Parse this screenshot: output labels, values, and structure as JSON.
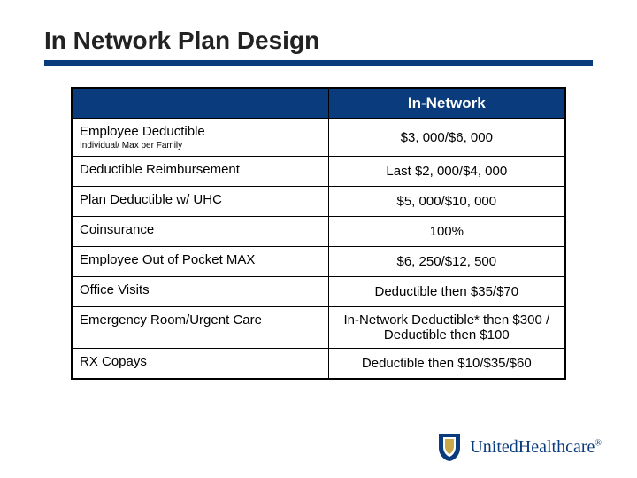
{
  "title": "In Network Plan Design",
  "colors": {
    "brand_navy": "#0a3b7c",
    "text": "#222222",
    "border": "#000000",
    "bg": "#ffffff"
  },
  "table": {
    "header_label": "In-Network",
    "rows": [
      {
        "label": "Employee Deductible",
        "sublabel": "Individual/ Max per Family",
        "value": "$3, 000/$6, 000"
      },
      {
        "label": "Deductible Reimbursement",
        "value": "Last $2, 000/$4, 000"
      },
      {
        "label": "Plan Deductible w/ UHC",
        "value": "$5, 000/$10, 000"
      },
      {
        "label": "Coinsurance",
        "value": "100%"
      },
      {
        "label": "Employee Out of Pocket MAX",
        "value": "$6, 250/$12, 500"
      },
      {
        "label": "Office Visits",
        "value": "Deductible then $35/$70"
      },
      {
        "label": "Emergency Room/Urgent Care",
        "value": "In-Network Deductible* then $300 / Deductible then $100",
        "tall": true
      },
      {
        "label": "RX Copays",
        "value": "Deductible then $10/$35/$60"
      }
    ]
  },
  "logo": {
    "text": "UnitedHealthcare",
    "reg": "®",
    "shield_outer": "#0a3b7c",
    "shield_inner": "#c9a84a"
  },
  "typography": {
    "title_fontsize": 28,
    "header_fontsize": 17,
    "cell_fontsize": 15,
    "sublabel_fontsize": 10,
    "logo_fontsize": 20
  }
}
